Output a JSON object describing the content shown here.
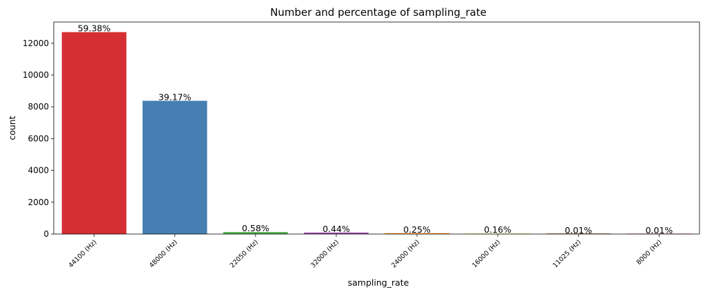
{
  "chart_data": {
    "type": "bar",
    "title": "Number and percentage of sampling_rate",
    "xlabel": "sampling_rate",
    "ylabel": "count",
    "categories": [
      "44100 (Hz)",
      "48000 (Hz)",
      "22050 (Hz)",
      "32000 (Hz)",
      "24000 (Hz)",
      "16000 (Hz)",
      "11025 (Hz)",
      "8000 (Hz)"
    ],
    "values": [
      12700,
      8380,
      124,
      94,
      53,
      34,
      2,
      2
    ],
    "percent_labels": [
      "59.38%",
      "39.17%",
      "0.58%",
      "0.44%",
      "0.25%",
      "0.16%",
      "0.01%",
      "0.01%"
    ],
    "colors": [
      "#d62f33",
      "#4680b2",
      "#4ead4b",
      "#984ea3",
      "#ff7f00",
      "#e8e84a",
      "#a65628",
      "#f781bf"
    ],
    "yticks": [
      0,
      2000,
      4000,
      6000,
      8000,
      10000,
      12000
    ],
    "ylim": [
      0,
      13335
    ],
    "grid": false,
    "legend": "none"
  }
}
